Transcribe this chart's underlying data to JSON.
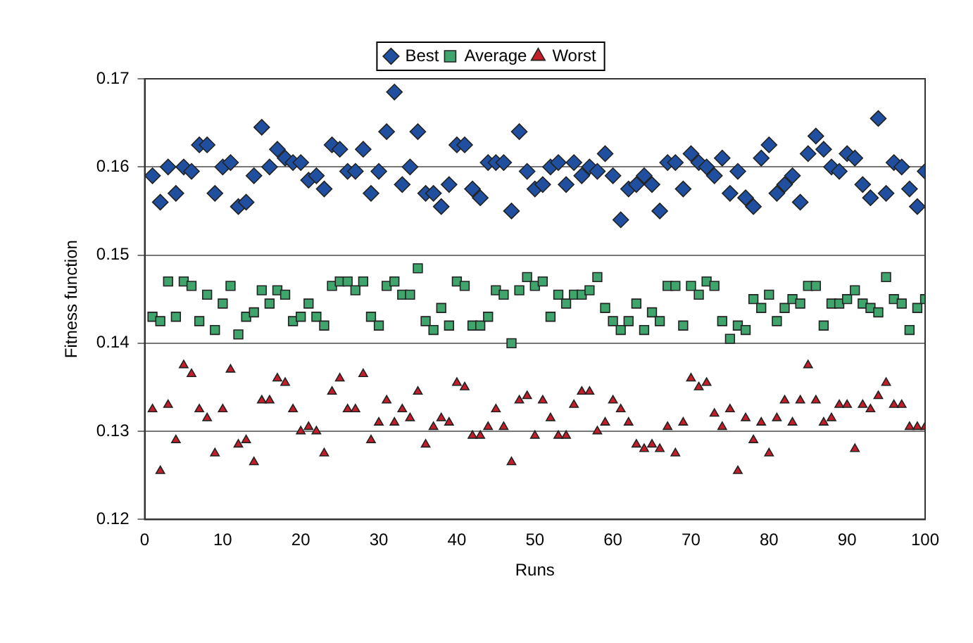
{
  "chart_data": {
    "type": "scatter",
    "xlabel": "Runs",
    "ylabel": "Fitness function",
    "x": [
      1,
      2,
      3,
      4,
      5,
      6,
      7,
      8,
      9,
      10,
      11,
      12,
      13,
      14,
      15,
      16,
      17,
      18,
      19,
      20,
      21,
      22,
      23,
      24,
      25,
      26,
      27,
      28,
      29,
      30,
      31,
      32,
      33,
      34,
      35,
      36,
      37,
      38,
      39,
      40,
      41,
      42,
      43,
      44,
      45,
      46,
      47,
      48,
      49,
      50,
      51,
      52,
      53,
      54,
      55,
      56,
      57,
      58,
      59,
      60,
      61,
      62,
      63,
      64,
      65,
      66,
      67,
      68,
      69,
      70,
      71,
      72,
      73,
      74,
      75,
      76,
      77,
      78,
      79,
      80,
      81,
      82,
      83,
      84,
      85,
      86,
      87,
      88,
      89,
      90,
      91,
      92,
      93,
      94,
      95,
      96,
      97,
      98,
      99,
      100
    ],
    "xlim": [
      0,
      100
    ],
    "xticks": [
      0,
      10,
      20,
      30,
      40,
      50,
      60,
      70,
      80,
      90,
      100
    ],
    "ylim": [
      0.12,
      0.17
    ],
    "yticks": [
      0.12,
      0.13,
      0.14,
      0.15,
      0.16,
      0.17
    ],
    "grid": "y",
    "legend": "top",
    "series": [
      {
        "name": "Best",
        "color": "#1f4f9e",
        "marker": "diamond",
        "values": [
          0.159,
          0.156,
          0.16,
          0.157,
          0.16,
          0.1595,
          0.1625,
          0.1625,
          0.157,
          0.16,
          0.1605,
          0.1555,
          0.156,
          0.159,
          0.1645,
          0.16,
          0.162,
          0.161,
          0.1605,
          0.1605,
          0.1585,
          0.159,
          0.1575,
          0.1625,
          0.162,
          0.1595,
          0.1595,
          0.162,
          0.157,
          0.1595,
          0.164,
          0.1685,
          0.158,
          0.16,
          0.164,
          0.157,
          0.157,
          0.1555,
          0.158,
          0.1625,
          0.1625,
          0.1575,
          0.1565,
          0.1605,
          0.1605,
          0.1605,
          0.155,
          0.164,
          0.1595,
          0.1575,
          0.158,
          0.16,
          0.1605,
          0.158,
          0.1605,
          0.159,
          0.16,
          0.1595,
          0.1615,
          0.159,
          0.154,
          0.1575,
          0.158,
          0.159,
          0.158,
          0.155,
          0.1605,
          0.1605,
          0.1575,
          0.1615,
          0.1605,
          0.16,
          0.159,
          0.161,
          0.157,
          0.1595,
          0.1565,
          0.1555,
          0.161,
          0.1625,
          0.157,
          0.158,
          0.159,
          0.156,
          0.1615,
          0.1635,
          0.162,
          0.16,
          0.1595,
          0.1615,
          0.161,
          0.158,
          0.1565,
          0.1655,
          0.157,
          0.1605,
          0.16,
          0.1575,
          0.1555,
          0.1595
        ]
      },
      {
        "name": "Average",
        "color": "#3fa56c",
        "marker": "square",
        "values": [
          0.143,
          0.1425,
          0.147,
          0.143,
          0.147,
          0.1465,
          0.1425,
          0.1455,
          0.1415,
          0.1445,
          0.1465,
          0.141,
          0.143,
          0.1435,
          0.146,
          0.1445,
          0.146,
          0.1455,
          0.1425,
          0.143,
          0.1445,
          0.143,
          0.142,
          0.1465,
          0.147,
          0.147,
          0.146,
          0.147,
          0.143,
          0.142,
          0.1465,
          0.147,
          0.1455,
          0.1455,
          0.1485,
          0.1425,
          0.1415,
          0.144,
          0.142,
          0.147,
          0.1465,
          0.142,
          0.142,
          0.143,
          0.146,
          0.1455,
          0.14,
          0.146,
          0.1475,
          0.1465,
          0.147,
          0.143,
          0.1455,
          0.1445,
          0.1455,
          0.1455,
          0.146,
          0.1475,
          0.144,
          0.1425,
          0.1415,
          0.1425,
          0.1445,
          0.1415,
          0.1435,
          0.1425,
          0.1465,
          0.1465,
          0.142,
          0.1465,
          0.1455,
          0.147,
          0.1465,
          0.1425,
          0.1405,
          0.142,
          0.1415,
          0.145,
          0.144,
          0.1455,
          0.1425,
          0.144,
          0.145,
          0.1445,
          0.1465,
          0.1465,
          0.142,
          0.1445,
          0.1445,
          0.145,
          0.146,
          0.1445,
          0.144,
          0.1435,
          0.1475,
          0.145,
          0.1445,
          0.1415,
          0.144,
          0.145
        ]
      },
      {
        "name": "Worst",
        "color": "#c41e2a",
        "marker": "triangle",
        "values": [
          0.1325,
          0.1255,
          0.133,
          0.129,
          0.1375,
          0.1365,
          0.1325,
          0.1315,
          0.1275,
          0.1325,
          0.137,
          0.1285,
          0.129,
          0.1265,
          0.1335,
          0.1335,
          0.136,
          0.1355,
          0.1325,
          0.13,
          0.1305,
          0.13,
          0.1275,
          0.1345,
          0.136,
          0.1325,
          0.1325,
          0.1365,
          0.129,
          0.131,
          0.1335,
          0.131,
          0.1325,
          0.1315,
          0.1345,
          0.1285,
          0.1305,
          0.1315,
          0.131,
          0.1355,
          0.135,
          0.1295,
          0.1295,
          0.1305,
          0.1325,
          0.1305,
          0.1265,
          0.1335,
          0.134,
          0.1295,
          0.1335,
          0.1315,
          0.1295,
          0.1295,
          0.133,
          0.1345,
          0.1345,
          0.13,
          0.131,
          0.1335,
          0.1325,
          0.131,
          0.1285,
          0.128,
          0.1285,
          0.128,
          0.1305,
          0.1275,
          0.131,
          0.136,
          0.135,
          0.1355,
          0.132,
          0.1305,
          0.1325,
          0.1255,
          0.1315,
          0.129,
          0.131,
          0.1275,
          0.1315,
          0.1335,
          0.131,
          0.1335,
          0.1375,
          0.1335,
          0.131,
          0.1315,
          0.133,
          0.133,
          0.128,
          0.133,
          0.1325,
          0.134,
          0.1355,
          0.133,
          0.133,
          0.1305,
          0.1305,
          0.1305
        ]
      }
    ]
  }
}
